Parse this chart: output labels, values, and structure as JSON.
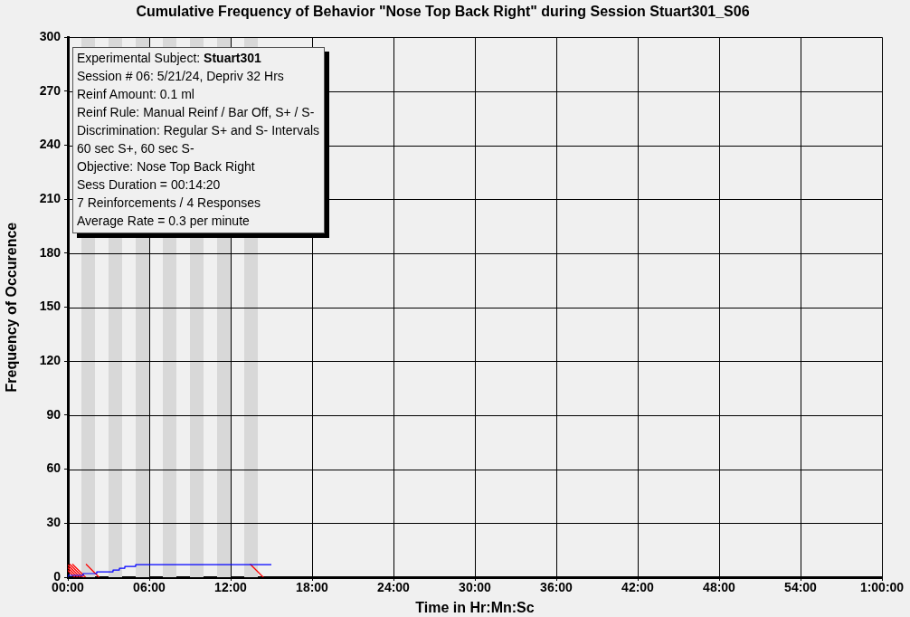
{
  "chart_data": {
    "type": "step",
    "title": "Cumulative Frequency of Behavior \"Nose Top Back Right\" during Session Stuart301_S06",
    "xlabel": "Time in Hr:Mn:Sc",
    "ylabel": "Frequency of Occurence",
    "annotations": [
      "Experimental Subject: Stuart301",
      "Session # 06: 5/21/24, Depriv 32 Hrs",
      "Reinf Amount: 0.1 ml",
      "Reinf Rule: Manual Reinf / Bar Off, S+ / S-",
      "Discrimination: Regular S+ and S- Intervals",
      "60 sec S+, 60 sec S-",
      "Objective: Nose Top Back Right",
      "Sess Duration = 00:14:20",
      "7 Reinforcements / 4 Responses",
      "Average Rate = 0.3 per minute"
    ],
    "series": [
      {
        "color": "#0000ff",
        "x": [
          0,
          1.13,
          2.13,
          3.33,
          3.8,
          4.2,
          5.0,
          5.8,
          15
        ],
        "values": [
          0,
          1,
          2,
          3,
          4,
          5,
          6,
          7,
          7
        ]
      },
      {
        "type": "scatter",
        "color": "#ff0000",
        "marker": "cross",
        "x": [
          0.1,
          0.3,
          0.5,
          0.7,
          0.9,
          1.9,
          14.0
        ],
        "values": [
          3,
          3,
          3,
          3,
          3,
          3,
          3
        ]
      }
    ],
    "bands": [
      {
        "axis": "x",
        "from": 1,
        "to": 2,
        "color": "#d8d8d8"
      },
      {
        "axis": "x",
        "from": 3,
        "to": 4,
        "color": "#d8d8d8"
      },
      {
        "axis": "x",
        "from": 5,
        "to": 6,
        "color": "#d8d8d8"
      },
      {
        "axis": "x",
        "from": 7,
        "to": 8,
        "color": "#d8d8d8"
      },
      {
        "axis": "x",
        "from": 9,
        "to": 10,
        "color": "#d8d8d8"
      },
      {
        "axis": "x",
        "from": 11,
        "to": 12,
        "color": "#d8d8d8"
      },
      {
        "axis": "x",
        "from": 13,
        "to": 14,
        "color": "#d8d8d8"
      }
    ],
    "xlim": [
      0,
      60
    ],
    "xticks": [
      {
        "value": 0,
        "label": "00:00"
      },
      {
        "value": 6,
        "label": "06:00"
      },
      {
        "value": 12,
        "label": "12:00"
      },
      {
        "value": 18,
        "label": "18:00"
      },
      {
        "value": 24,
        "label": "24:00"
      },
      {
        "value": 30,
        "label": "30:00"
      },
      {
        "value": 36,
        "label": "36:00"
      },
      {
        "value": 42,
        "label": "42:00"
      },
      {
        "value": 48,
        "label": "48:00"
      },
      {
        "value": 54,
        "label": "54:00"
      },
      {
        "value": 60,
        "label": "1:00:00"
      }
    ],
    "ylim": [
      0,
      300
    ],
    "yticks": [
      0,
      30,
      60,
      90,
      120,
      150,
      180,
      210,
      240,
      270,
      300
    ],
    "grid": true,
    "legend": false
  }
}
